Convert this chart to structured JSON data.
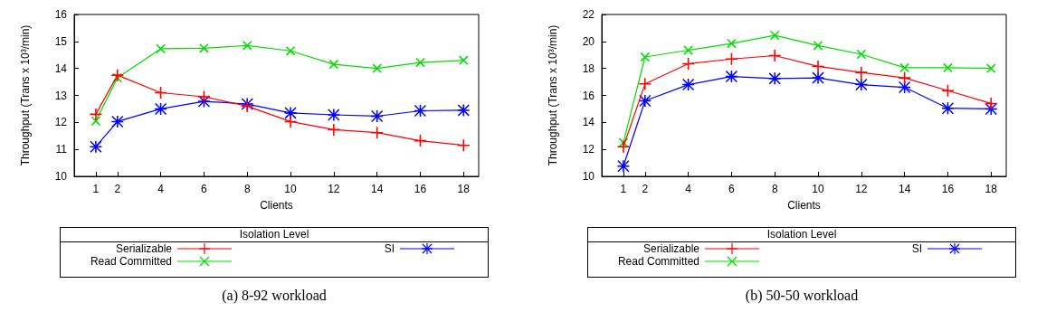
{
  "chart_data": [
    {
      "type": "line",
      "annotations": [
        "(a) 8-92 workload"
      ],
      "xlabel": "Clients",
      "ylabel": "Throughput (Trans x 10³/min)",
      "legend_title": "Isolation Level",
      "legend": "bottom",
      "line_style": "solid",
      "x": [
        1,
        2,
        4,
        6,
        8,
        10,
        12,
        14,
        16,
        18
      ],
      "xlim": [
        0,
        18.7
      ],
      "xticks": [
        1,
        2,
        4,
        6,
        8,
        10,
        12,
        14,
        16,
        18
      ],
      "ylim": [
        10,
        16
      ],
      "yticks": [
        10,
        11,
        12,
        13,
        14,
        15,
        16
      ],
      "series": [
        {
          "name": "Serializable",
          "color": "#ff0000",
          "marker": "plus",
          "values": [
            12.3,
            13.75,
            13.1,
            12.95,
            12.6,
            12.03,
            11.73,
            11.62,
            11.32,
            11.15
          ]
        },
        {
          "name": "SI",
          "color": "#0000ff",
          "marker": "star",
          "values": [
            11.1,
            12.03,
            12.5,
            12.78,
            12.68,
            12.35,
            12.28,
            12.23,
            12.43,
            12.45
          ]
        },
        {
          "name": "Read Committed",
          "color": "#00dd00",
          "marker": "cross",
          "values": [
            12.05,
            13.65,
            14.73,
            14.75,
            14.85,
            14.65,
            14.15,
            14.0,
            14.22,
            14.3
          ]
        }
      ]
    },
    {
      "type": "line",
      "annotations": [
        "(b) 50-50 workload"
      ],
      "xlabel": "Clients",
      "ylabel": "Throughput (Trans x 10³/min)",
      "legend_title": "Isolation Level",
      "legend": "bottom",
      "line_style": "solid",
      "x": [
        1,
        2,
        4,
        6,
        8,
        10,
        12,
        14,
        16,
        18
      ],
      "xlim": [
        0,
        18.7
      ],
      "xticks": [
        1,
        2,
        4,
        6,
        8,
        10,
        12,
        14,
        16,
        18
      ],
      "ylim": [
        10,
        22
      ],
      "yticks": [
        10,
        12,
        14,
        16,
        18,
        20,
        22
      ],
      "series": [
        {
          "name": "Serializable",
          "color": "#ff0000",
          "marker": "plus",
          "values": [
            12.2,
            16.85,
            18.35,
            18.7,
            18.95,
            18.15,
            17.7,
            17.3,
            16.35,
            15.4
          ]
        },
        {
          "name": "SI",
          "color": "#0000ff",
          "marker": "star",
          "values": [
            10.75,
            15.6,
            16.8,
            17.4,
            17.25,
            17.3,
            16.8,
            16.6,
            15.05,
            15.0
          ]
        },
        {
          "name": "Read Committed",
          "color": "#00dd00",
          "marker": "cross",
          "values": [
            12.5,
            18.85,
            19.35,
            19.85,
            20.45,
            19.7,
            19.05,
            18.05,
            18.05,
            18.0
          ]
        }
      ]
    }
  ]
}
